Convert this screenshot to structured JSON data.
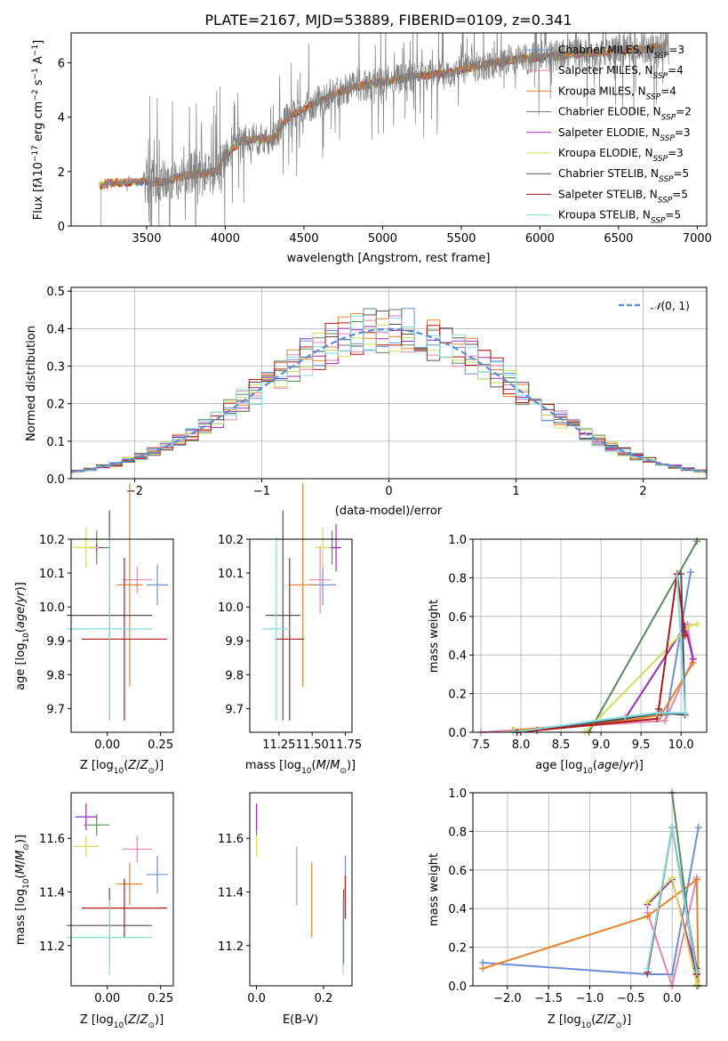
{
  "colors": {
    "chabrier_miles": "#6a8fd8",
    "salpeter_miles": "#e884b0",
    "kroupa_miles": "#e8822c",
    "chabrier_elodie": "#5a8a5a",
    "salpeter_elodie": "#9a2ab8",
    "kroupa_elodie": "#d4dc5a",
    "chabrier_stelib": "#505050",
    "salpeter_stelib": "#b01818",
    "kroupa_stelib": "#82dce0",
    "data": "#808080",
    "normal": "#5b8bd8"
  },
  "chart_data": [
    {
      "id": "spectrum",
      "type": "line",
      "title": "PLATE=2167, MJD=53889, FIBERID=0109, z=0.341",
      "xlabel": "wavelength [Angstrom, rest frame]",
      "ylabel": "Flux [fλ10⁻¹⁷ erg cm⁻² s⁻¹ A⁻¹]",
      "xlim": [
        3020,
        7060
      ],
      "ylim": [
        0,
        7.1
      ],
      "xticks": [
        "3500",
        "4000",
        "4500",
        "5000",
        "5500",
        "6000",
        "6500",
        "7000"
      ],
      "yticks": [
        "0",
        "2",
        "4",
        "6"
      ],
      "continuum_anchors": {
        "x": [
          3200,
          3300,
          3400,
          3500,
          3600,
          3700,
          3800,
          3950,
          4000,
          4100,
          4200,
          4300,
          4400,
          4600,
          4800,
          5000,
          5200,
          5400,
          5600,
          5800,
          6000,
          6200,
          6400,
          6600,
          6800
        ],
        "y": [
          1.5,
          1.6,
          1.6,
          1.65,
          1.6,
          1.8,
          1.9,
          2.0,
          2.6,
          3.1,
          3.2,
          3.2,
          4.0,
          4.6,
          5.1,
          5.3,
          5.5,
          5.6,
          5.9,
          6.1,
          6.2,
          6.3,
          6.4,
          6.5,
          6.6
        ]
      },
      "legend": [
        "Chabrier MILES, N_SSP=3",
        "Salpeter MILES, N_SSP=4",
        "Kroupa MILES, N_SSP=4",
        "Chabrier ELODIE, N_SSP=2",
        "Salpeter ELODIE, N_SSP=3",
        "Kroupa ELODIE, N_SSP=3",
        "Chabrier STELIB, N_SSP=5",
        "Salpeter STELIB, N_SSP=5",
        "Kroupa STELIB, N_SSP=5"
      ],
      "legend_position": "top-right"
    },
    {
      "id": "residual",
      "type": "line",
      "xlabel": "(data-model)/error",
      "ylabel": "Normed distribution",
      "xlim": [
        -2.5,
        2.5
      ],
      "ylim": [
        0,
        0.51
      ],
      "xticks": [
        "-2",
        "-1",
        "0",
        "1",
        "2"
      ],
      "yticks": [
        "0.0",
        "0.1",
        "0.2",
        "0.3",
        "0.4",
        "0.5"
      ],
      "grid": true,
      "legend": [
        "N(0,1)"
      ],
      "legend_position": "top-right"
    },
    {
      "id": "age_vs_Z",
      "type": "scatter",
      "xlabel": "Z [log10(Z/Z☉)]",
      "ylabel": "age  [log10(age/yr)]",
      "xlim": [
        -0.17,
        0.31
      ],
      "ylim": [
        9.63,
        10.2
      ],
      "xticks": [
        "0.00",
        "0.25"
      ],
      "yticks": [
        "9.7",
        "9.8",
        "9.9",
        "10.0",
        "10.1",
        "10.2"
      ],
      "points": [
        {
          "model": "chabrier_miles",
          "x": 0.235,
          "y": 10.065,
          "xerr": 0.05,
          "yerr": 0.06
        },
        {
          "model": "salpeter_miles",
          "x": 0.14,
          "y": 10.08,
          "xerr": 0.07,
          "yerr": 0.04
        },
        {
          "model": "kroupa_miles",
          "x": 0.105,
          "y": 10.065,
          "xerr": 0.06,
          "yerr": 0.3
        },
        {
          "model": "chabrier_elodie",
          "x": -0.05,
          "y": 10.175,
          "xerr": 0.06,
          "yerr": 0.05
        },
        {
          "model": "salpeter_elodie",
          "x": -0.05,
          "y": 10.175,
          "xerr": 0.03,
          "yerr": 0.01
        },
        {
          "model": "kroupa_elodie",
          "x": -0.1,
          "y": 10.175,
          "xerr": 0.06,
          "yerr": 0.06
        },
        {
          "model": "chabrier_stelib",
          "x": 0.01,
          "y": 9.975,
          "xerr": 0.2,
          "yerr": 0.31
        },
        {
          "model": "salpeter_stelib",
          "x": 0.08,
          "y": 9.905,
          "xerr": 0.2,
          "yerr": 0.24
        },
        {
          "model": "kroupa_stelib",
          "x": 0.01,
          "y": 9.935,
          "xerr": 0.2,
          "yerr": 0.27
        }
      ]
    },
    {
      "id": "age_vs_mass",
      "type": "scatter",
      "xlabel": "mass [log10(M/M☉)]",
      "ylabel": "",
      "xlim": [
        11.03,
        11.8
      ],
      "ylim": [
        9.63,
        10.2
      ],
      "xticks": [
        "11.25",
        "11.50",
        "11.75"
      ],
      "yticks": [
        "9.7",
        "9.8",
        "9.9",
        "10.0",
        "10.1",
        "10.2"
      ],
      "points": [
        {
          "model": "chabrier_miles",
          "x": 11.58,
          "y": 10.065,
          "xerr": 0.1,
          "yerr": 0.06
        },
        {
          "model": "salpeter_miles",
          "x": 11.56,
          "y": 10.08,
          "xerr": 0.08,
          "yerr": 0.1
        },
        {
          "model": "kroupa_miles",
          "x": 11.43,
          "y": 10.065,
          "xerr": 0.1,
          "yerr": 0.3
        },
        {
          "model": "chabrier_elodie",
          "x": 11.65,
          "y": 10.175,
          "xerr": 0.06,
          "yerr": 0.05
        },
        {
          "model": "salpeter_elodie",
          "x": 11.68,
          "y": 10.175,
          "xerr": 0.04,
          "yerr": 0.07
        },
        {
          "model": "kroupa_elodie",
          "x": 11.58,
          "y": 10.175,
          "xerr": 0.06,
          "yerr": 0.06
        },
        {
          "model": "chabrier_stelib",
          "x": 11.28,
          "y": 9.975,
          "xerr": 0.13,
          "yerr": 0.31
        },
        {
          "model": "salpeter_stelib",
          "x": 11.33,
          "y": 9.905,
          "xerr": 0.11,
          "yerr": 0.24
        },
        {
          "model": "kroupa_stelib",
          "x": 11.23,
          "y": 9.935,
          "xerr": 0.11,
          "yerr": 0.27
        }
      ]
    },
    {
      "id": "weight_vs_age",
      "type": "line",
      "xlabel": "age  [log10(age/yr)]",
      "ylabel": "mass weight",
      "xlim": [
        7.4,
        10.32
      ],
      "ylim": [
        0,
        1
      ],
      "xticks": [
        "7.5",
        "8.0",
        "8.5",
        "9.0",
        "9.5",
        "10.0"
      ],
      "yticks": [
        "0.0",
        "0.2",
        "0.4",
        "0.6",
        "0.8",
        "1.0"
      ],
      "grid": true,
      "series": [
        {
          "model": "chabrier_miles",
          "x": [
            9.3,
            9.82,
            10.12
          ],
          "y": [
            0.08,
            0.09,
            0.83
          ]
        },
        {
          "model": "salpeter_miles",
          "x": [
            7.5,
            9.8,
            10.15,
            10.08
          ],
          "y": [
            0.0,
            0.06,
            0.38,
            0.56
          ]
        },
        {
          "model": "kroupa_miles",
          "x": [
            7.9,
            9.3,
            9.75,
            10.15
          ],
          "y": [
            0.01,
            0.06,
            0.09,
            0.36
          ]
        },
        {
          "model": "chabrier_elodie",
          "x": [
            8.85,
            10.2
          ],
          "y": [
            0.0,
            0.99
          ]
        },
        {
          "model": "salpeter_elodie",
          "x": [
            8.2,
            9.3,
            10.05,
            10.15
          ],
          "y": [
            0.01,
            0.07,
            0.55,
            0.38
          ]
        },
        {
          "model": "kroupa_elodie",
          "x": [
            8.8,
            10.1,
            10.2
          ],
          "y": [
            0.0,
            0.55,
            0.56
          ]
        },
        {
          "model": "chabrier_stelib",
          "x": [
            7.95,
            9.3,
            9.75,
            10.05,
            10.0
          ],
          "y": [
            0.0,
            0.07,
            0.1,
            0.09,
            0.82
          ]
        },
        {
          "model": "salpeter_stelib",
          "x": [
            7.95,
            9.7,
            9.72,
            9.95,
            10.05
          ],
          "y": [
            0.0,
            0.07,
            0.12,
            0.82,
            0.5
          ]
        },
        {
          "model": "kroupa_stelib",
          "x": [
            7.9,
            9.3,
            9.7,
            10.05,
            9.95
          ],
          "y": [
            0.0,
            0.08,
            0.1,
            0.1,
            0.81
          ]
        }
      ]
    },
    {
      "id": "mass_vs_Z",
      "type": "scatter",
      "xlabel": "Z [log10(Z/Z☉)]",
      "ylabel": "mass [log10(M/M☉)]",
      "xlim": [
        -0.17,
        0.31
      ],
      "ylim": [
        11.05,
        11.77
      ],
      "xticks": [
        "0.00",
        "0.25"
      ],
      "yticks": [
        "11.2",
        "11.4",
        "11.6"
      ],
      "points": [
        {
          "model": "chabrier_miles",
          "x": 0.235,
          "y": 11.465,
          "xerr": 0.05,
          "yerr": 0.07
        },
        {
          "model": "salpeter_miles",
          "x": 0.14,
          "y": 11.56,
          "xerr": 0.07,
          "yerr": 0.05
        },
        {
          "model": "kroupa_miles",
          "x": 0.105,
          "y": 11.43,
          "xerr": 0.06,
          "yerr": 0.08
        },
        {
          "model": "chabrier_elodie",
          "x": -0.05,
          "y": 11.65,
          "xerr": 0.06,
          "yerr": 0.04
        },
        {
          "model": "salpeter_elodie",
          "x": -0.1,
          "y": 11.68,
          "xerr": 0.05,
          "yerr": 0.05
        },
        {
          "model": "kroupa_elodie",
          "x": -0.1,
          "y": 11.57,
          "xerr": 0.06,
          "yerr": 0.04
        },
        {
          "model": "chabrier_stelib",
          "x": 0.01,
          "y": 11.275,
          "xerr": 0.2,
          "yerr": 0.14
        },
        {
          "model": "salpeter_stelib",
          "x": 0.08,
          "y": 11.34,
          "xerr": 0.2,
          "yerr": 0.11
        },
        {
          "model": "kroupa_stelib",
          "x": 0.01,
          "y": 11.23,
          "xerr": 0.2,
          "yerr": 0.14
        }
      ]
    },
    {
      "id": "mass_vs_ebv",
      "type": "scatter",
      "xlabel": "E(B-V)",
      "ylabel": "",
      "xlim": [
        -0.02,
        0.285
      ],
      "ylim": [
        11.05,
        11.77
      ],
      "xticks": [
        "0.0",
        "0.2"
      ],
      "yticks": [
        "11.2",
        "11.4",
        "11.6"
      ],
      "points": [
        {
          "model": "chabrier_miles",
          "x": 0.265,
          "y": 11.465,
          "xerr": 0.0,
          "yerr": 0.07
        },
        {
          "model": "salpeter_miles",
          "x": 0.12,
          "y": 11.46,
          "xerr": 0.0,
          "yerr": 0.11
        },
        {
          "model": "kroupa_miles",
          "x": 0.165,
          "y": 11.37,
          "xerr": 0.0,
          "yerr": 0.14
        },
        {
          "model": "chabrier_elodie",
          "x": 0.0,
          "y": 11.66,
          "xerr": 0.0,
          "yerr": 0.05
        },
        {
          "model": "salpeter_elodie",
          "x": 0.0,
          "y": 11.68,
          "xerr": 0.0,
          "yerr": 0.05
        },
        {
          "model": "kroupa_elodie",
          "x": 0.0,
          "y": 11.57,
          "xerr": 0.0,
          "yerr": 0.04
        },
        {
          "model": "chabrier_stelib",
          "x": 0.26,
          "y": 11.27,
          "xerr": 0.0,
          "yerr": 0.14
        },
        {
          "model": "salpeter_stelib",
          "x": 0.265,
          "y": 11.38,
          "xerr": 0.0,
          "yerr": 0.08
        },
        {
          "model": "kroupa_stelib",
          "x": 0.258,
          "y": 11.23,
          "xerr": 0.0,
          "yerr": 0.14
        }
      ]
    },
    {
      "id": "weight_vs_Z",
      "type": "line",
      "xlabel": "Z [log10(Z/Z☉)]",
      "ylabel": "mass weight",
      "xlim": [
        -2.42,
        0.42
      ],
      "ylim": [
        0,
        1
      ],
      "xticks": [
        "-2.0",
        "-1.5",
        "-1.0",
        "-0.5",
        "0.0"
      ],
      "yticks": [
        "0.0",
        "0.2",
        "0.4",
        "0.6",
        "0.8",
        "1.0"
      ],
      "grid": true,
      "series": [
        {
          "model": "chabrier_miles",
          "x": [
            -2.3,
            -0.3,
            0.0,
            0.32
          ],
          "y": [
            0.12,
            0.06,
            0.06,
            0.82
          ]
        },
        {
          "model": "salpeter_miles",
          "x": [
            -0.3,
            0.0,
            0.3
          ],
          "y": [
            0.38,
            0.0,
            0.56
          ]
        },
        {
          "model": "kroupa_miles",
          "x": [
            -2.3,
            -0.3,
            0.3,
            0.32
          ],
          "y": [
            0.09,
            0.36,
            0.55,
            0.0
          ]
        },
        {
          "model": "chabrier_elodie",
          "x": [
            0.0,
            0.3
          ],
          "y": [
            1.0,
            0.0
          ]
        },
        {
          "model": "salpeter_elodie",
          "x": [
            -0.3,
            0.0,
            0.3
          ],
          "y": [
            0.42,
            0.55,
            0.06
          ]
        },
        {
          "model": "kroupa_elodie",
          "x": [
            -0.3,
            0.0,
            0.3
          ],
          "y": [
            0.43,
            0.56,
            0.01
          ]
        },
        {
          "model": "chabrier_stelib",
          "x": [
            -0.3,
            0.0,
            0.3
          ],
          "y": [
            0.07,
            0.82,
            0.09
          ]
        },
        {
          "model": "salpeter_stelib",
          "x": [
            -0.3,
            0.0,
            0.3
          ],
          "y": [
            0.07,
            0.82,
            0.06
          ]
        },
        {
          "model": "kroupa_stelib",
          "x": [
            -0.3,
            0.0,
            0.3
          ],
          "y": [
            0.09,
            0.82,
            0.07
          ]
        }
      ]
    }
  ]
}
